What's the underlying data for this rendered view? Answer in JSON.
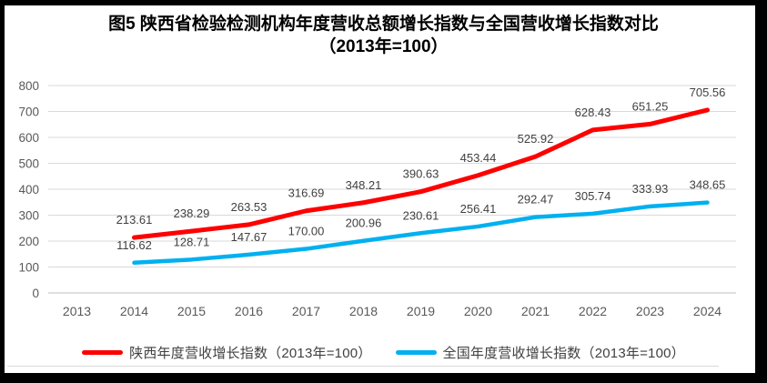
{
  "title": {
    "line1": "图5  陕西省检验检测机构年度营收总额增长指数与全国营收增长指数对比",
    "line2": "（2013年=100）"
  },
  "chart_data": {
    "type": "line",
    "categories": [
      "2013",
      "2014",
      "2015",
      "2016",
      "2017",
      "2018",
      "2019",
      "2020",
      "2021",
      "2022",
      "2023",
      "2024"
    ],
    "series": [
      {
        "name": "陕西年度营收增长指数（2013年=100）",
        "color": "#fe0000",
        "values": [
          null,
          213.61,
          238.29,
          263.53,
          316.69,
          348.21,
          390.63,
          453.44,
          525.92,
          628.43,
          651.25,
          705.56
        ],
        "labels": [
          null,
          "213.61",
          "238.29",
          "263.53",
          "316.69",
          "348.21",
          "390.63",
          "453.44",
          "525.92",
          "628.43",
          "651.25",
          "705.56"
        ]
      },
      {
        "name": "全国年度营收增长指数（2013年=100）",
        "color": "#00b0f0",
        "values": [
          null,
          116.62,
          128.71,
          147.67,
          170.0,
          200.96,
          230.61,
          256.41,
          292.47,
          305.74,
          333.93,
          348.65
        ],
        "labels": [
          null,
          "116.62",
          "128.71",
          "147.67",
          "170.00",
          "200.96",
          "230.61",
          "256.41",
          "292.47",
          "305.74",
          "333.93",
          "348.65"
        ]
      }
    ],
    "ylim": [
      0,
      800
    ],
    "ytick_step": 100,
    "yticks": [
      "0",
      "100",
      "200",
      "300",
      "400",
      "500",
      "600",
      "700",
      "800"
    ],
    "grid": true,
    "data_labels": true,
    "legend_position": "bottom",
    "grid_color": "#d9d9d9",
    "axis_line_color": "#bfbfbf",
    "tick_label_color": "#595959",
    "data_label_color": "#404040"
  }
}
